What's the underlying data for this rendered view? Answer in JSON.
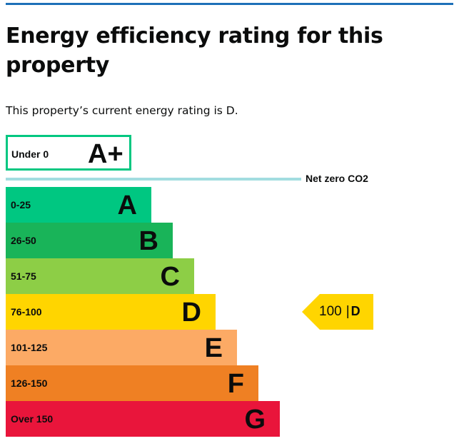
{
  "page": {
    "title": "Energy efficiency rating for this property",
    "summary": "This property’s current energy rating is D."
  },
  "aplus": {
    "range": "Under 0",
    "letter": "A+",
    "color": "#00c781"
  },
  "net_zero": {
    "label": "Net zero CO2",
    "color": "#a2dde0"
  },
  "bands": [
    {
      "range": "0-25",
      "letter": "A",
      "color": "#00c781"
    },
    {
      "range": "26-50",
      "letter": "B",
      "color": "#19b459"
    },
    {
      "range": "51-75",
      "letter": "C",
      "color": "#8dce46"
    },
    {
      "range": "76-100",
      "letter": "D",
      "color": "#ffd500"
    },
    {
      "range": "101-125",
      "letter": "E",
      "color": "#fcaa65"
    },
    {
      "range": "126-150",
      "letter": "F",
      "color": "#ef8023"
    },
    {
      "range": "Over 150",
      "letter": "G",
      "color": "#e9153b"
    }
  ],
  "current": {
    "score": "100",
    "separator": "|",
    "rating": "D",
    "color": "#ffd500"
  }
}
